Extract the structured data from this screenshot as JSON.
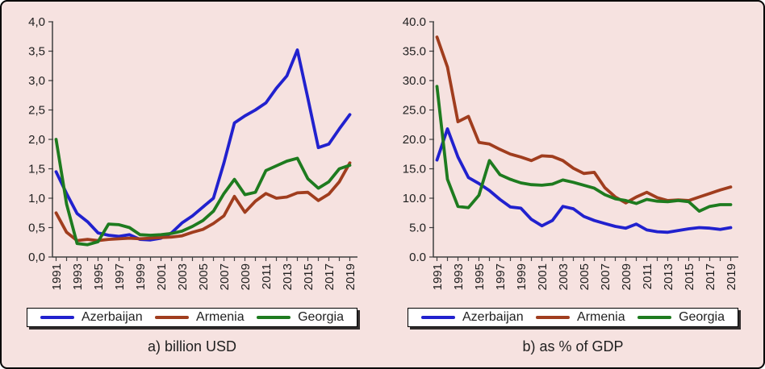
{
  "figure": {
    "background": "#F6E2E0",
    "border_color": "#000000"
  },
  "colors": {
    "azerbaijan": "#2121CE",
    "armenia": "#A03D1E",
    "georgia": "#1E7B1F",
    "axis": "#3F3F3F",
    "text": "#1F1F1F",
    "legend_bg": "#FFFFFF"
  },
  "legend": {
    "items": [
      {
        "label": "Azerbaijan",
        "color_key": "azerbaijan"
      },
      {
        "label": "Armenia",
        "color_key": "armenia"
      },
      {
        "label": "Georgia",
        "color_key": "georgia"
      }
    ]
  },
  "chart_data": [
    {
      "type": "line",
      "caption": "a) billion USD",
      "ylabel": "",
      "xlabel": "",
      "grid": false,
      "legend_position": "bottom",
      "ylim": [
        0,
        4
      ],
      "x": [
        1991,
        1992,
        1993,
        1994,
        1995,
        1996,
        1997,
        1998,
        1999,
        2000,
        2001,
        2002,
        2003,
        2004,
        2005,
        2006,
        2007,
        2008,
        2009,
        2010,
        2011,
        2012,
        2013,
        2014,
        2015,
        2016,
        2017,
        2018,
        2019
      ],
      "x_tick_labels": [
        "1991",
        "1993",
        "1995",
        "1997",
        "1999",
        "2001",
        "2003",
        "2005",
        "2007",
        "2009",
        "2011",
        "2013",
        "2015",
        "2017",
        "2019"
      ],
      "yticks": [
        {
          "value": 0.0,
          "label": "0,0"
        },
        {
          "value": 0.5,
          "label": "0,5"
        },
        {
          "value": 1.0,
          "label": "1,0"
        },
        {
          "value": 1.5,
          "label": "1,5"
        },
        {
          "value": 2.0,
          "label": "2,0"
        },
        {
          "value": 2.5,
          "label": "2,5"
        },
        {
          "value": 3.0,
          "label": "3,0"
        },
        {
          "value": 3.5,
          "label": "3,5"
        },
        {
          "value": 4.0,
          "label": "4,0"
        }
      ],
      "series": [
        {
          "name": "Azerbaijan",
          "color_key": "azerbaijan",
          "values": [
            1.45,
            1.08,
            0.74,
            0.6,
            0.41,
            0.37,
            0.35,
            0.38,
            0.3,
            0.29,
            0.32,
            0.41,
            0.58,
            0.7,
            0.85,
            1.0,
            1.6,
            2.28,
            2.4,
            2.5,
            2.62,
            2.87,
            3.08,
            3.52,
            2.7,
            1.86,
            1.92,
            2.18,
            2.42
          ]
        },
        {
          "name": "Armenia",
          "color_key": "armenia",
          "values": [
            0.75,
            0.42,
            0.28,
            0.3,
            0.28,
            0.3,
            0.31,
            0.32,
            0.31,
            0.32,
            0.33,
            0.34,
            0.36,
            0.42,
            0.47,
            0.57,
            0.7,
            1.03,
            0.76,
            0.95,
            1.08,
            1.0,
            1.02,
            1.09,
            1.1,
            0.96,
            1.07,
            1.28,
            1.6
          ]
        },
        {
          "name": "Georgia",
          "color_key": "georgia",
          "values": [
            2.0,
            0.9,
            0.23,
            0.21,
            0.26,
            0.56,
            0.55,
            0.5,
            0.38,
            0.37,
            0.38,
            0.4,
            0.44,
            0.52,
            0.62,
            0.78,
            1.08,
            1.32,
            1.06,
            1.1,
            1.47,
            1.55,
            1.63,
            1.68,
            1.33,
            1.17,
            1.28,
            1.5,
            1.56
          ]
        }
      ]
    },
    {
      "type": "line",
      "caption": "b) as % of GDP",
      "ylabel": "",
      "xlabel": "",
      "grid": false,
      "legend_position": "bottom",
      "ylim": [
        0,
        40
      ],
      "x": [
        1991,
        1992,
        1993,
        1994,
        1995,
        1996,
        1997,
        1998,
        1999,
        2000,
        2001,
        2002,
        2003,
        2004,
        2005,
        2006,
        2007,
        2008,
        2009,
        2010,
        2011,
        2012,
        2013,
        2014,
        2015,
        2016,
        2017,
        2018,
        2019
      ],
      "x_tick_labels": [
        "1991",
        "1993",
        "1995",
        "1997",
        "1999",
        "2001",
        "2003",
        "2005",
        "2007",
        "2009",
        "2011",
        "2013",
        "2015",
        "2017",
        "2019"
      ],
      "yticks": [
        {
          "value": 0,
          "label": "0.0"
        },
        {
          "value": 5,
          "label": "5.0"
        },
        {
          "value": 10,
          "label": "10.0"
        },
        {
          "value": 15,
          "label": "15.0"
        },
        {
          "value": 20,
          "label": "20.0"
        },
        {
          "value": 25,
          "label": "25.0"
        },
        {
          "value": 30,
          "label": "30.0"
        },
        {
          "value": 35,
          "label": "35.0"
        },
        {
          "value": 40,
          "label": "40.0"
        }
      ],
      "series": [
        {
          "name": "Azerbaijan",
          "color_key": "azerbaijan",
          "values": [
            16.5,
            21.8,
            17.0,
            13.5,
            12.5,
            11.3,
            9.8,
            8.5,
            8.3,
            6.4,
            5.3,
            6.2,
            8.6,
            8.2,
            6.9,
            6.2,
            5.7,
            5.2,
            4.9,
            5.6,
            4.6,
            4.3,
            4.2,
            4.5,
            4.8,
            5.0,
            4.9,
            4.7,
            5.0
          ]
        },
        {
          "name": "Armenia",
          "color_key": "armenia",
          "values": [
            37.4,
            32.3,
            23.0,
            23.9,
            19.5,
            19.2,
            18.3,
            17.5,
            17.0,
            16.4,
            17.2,
            17.1,
            16.4,
            15.1,
            14.2,
            14.4,
            11.8,
            10.2,
            9.2,
            10.2,
            11.0,
            10.1,
            9.6,
            9.7,
            9.6,
            10.2,
            10.8,
            11.4,
            11.9
          ]
        },
        {
          "name": "Georgia",
          "color_key": "georgia",
          "values": [
            29.0,
            13.2,
            8.6,
            8.4,
            10.5,
            16.4,
            14.0,
            13.2,
            12.6,
            12.3,
            12.2,
            12.4,
            13.1,
            12.7,
            12.2,
            11.7,
            10.6,
            9.9,
            9.6,
            9.1,
            9.8,
            9.5,
            9.4,
            9.6,
            9.4,
            7.8,
            8.6,
            8.9,
            8.9
          ]
        }
      ]
    }
  ]
}
